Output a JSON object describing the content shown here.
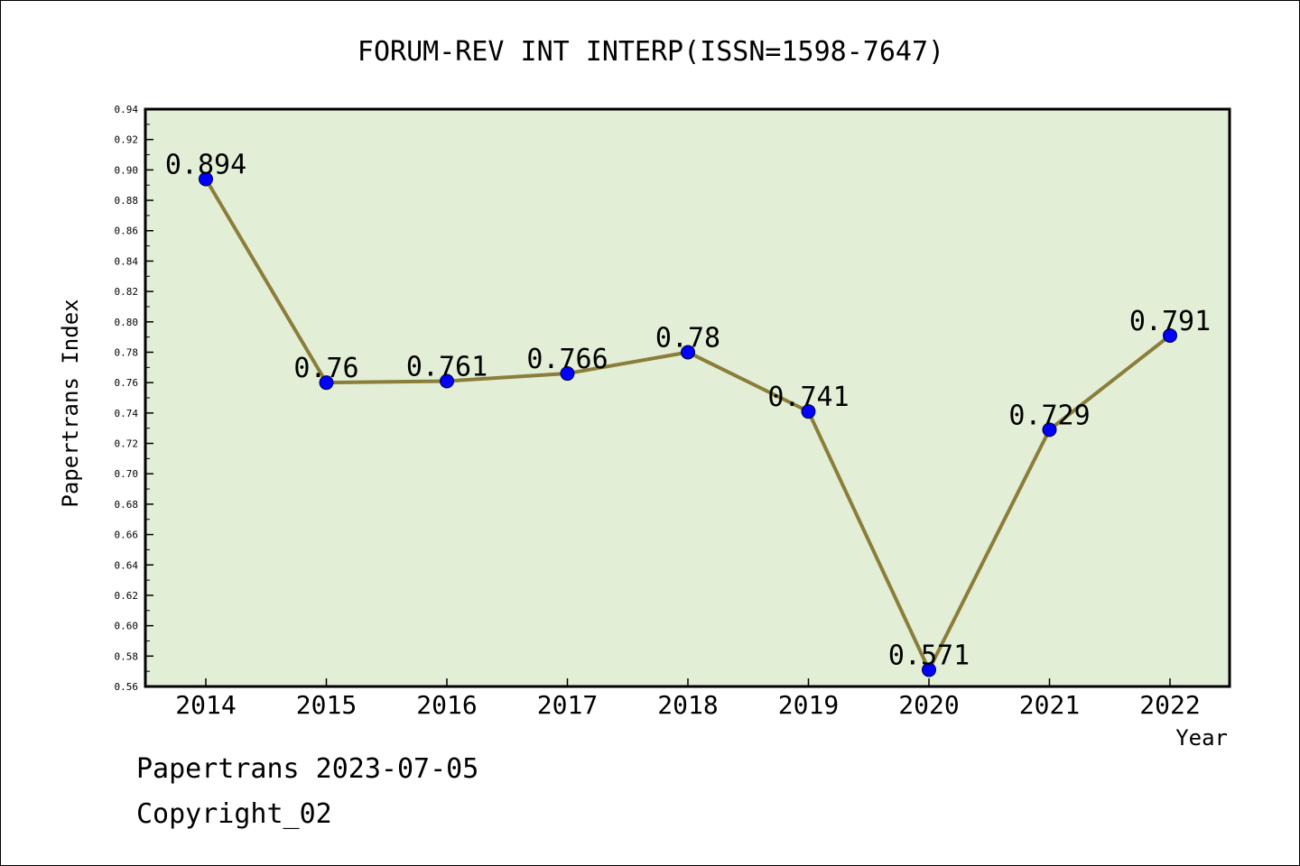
{
  "chart_data": {
    "type": "line",
    "title": "FORUM-REV INT INTERP(ISSN=1598-7647)",
    "xlabel": "Year",
    "ylabel": "Papertrans Index",
    "categories": [
      "2014",
      "2015",
      "2016",
      "2017",
      "2018",
      "2019",
      "2020",
      "2021",
      "2022"
    ],
    "series": [
      {
        "values": [
          0.894,
          0.76,
          0.761,
          0.766,
          0.78,
          0.741,
          0.571,
          0.729,
          0.791
        ],
        "labels": [
          "0.894",
          "0.76",
          "0.761",
          "0.766",
          "0.78",
          "0.741",
          "0.571",
          "0.729",
          "0.791"
        ]
      }
    ],
    "ylim": [
      0.56,
      0.94
    ],
    "yticks": [
      "0.56",
      "0.58",
      "0.60",
      "0.62",
      "0.64",
      "0.66",
      "0.68",
      "0.70",
      "0.72",
      "0.74",
      "0.76",
      "0.78",
      "0.80",
      "0.82",
      "0.84",
      "0.86",
      "0.88",
      "0.90",
      "0.92",
      "0.94"
    ],
    "colors": {
      "plot_background": "#e2efd6",
      "line": "#8b7d3a",
      "marker": "#0000ff"
    },
    "grid": false
  },
  "footer": {
    "date_line": "Papertrans 2023-07-05",
    "copyright": "Copyright_02"
  }
}
